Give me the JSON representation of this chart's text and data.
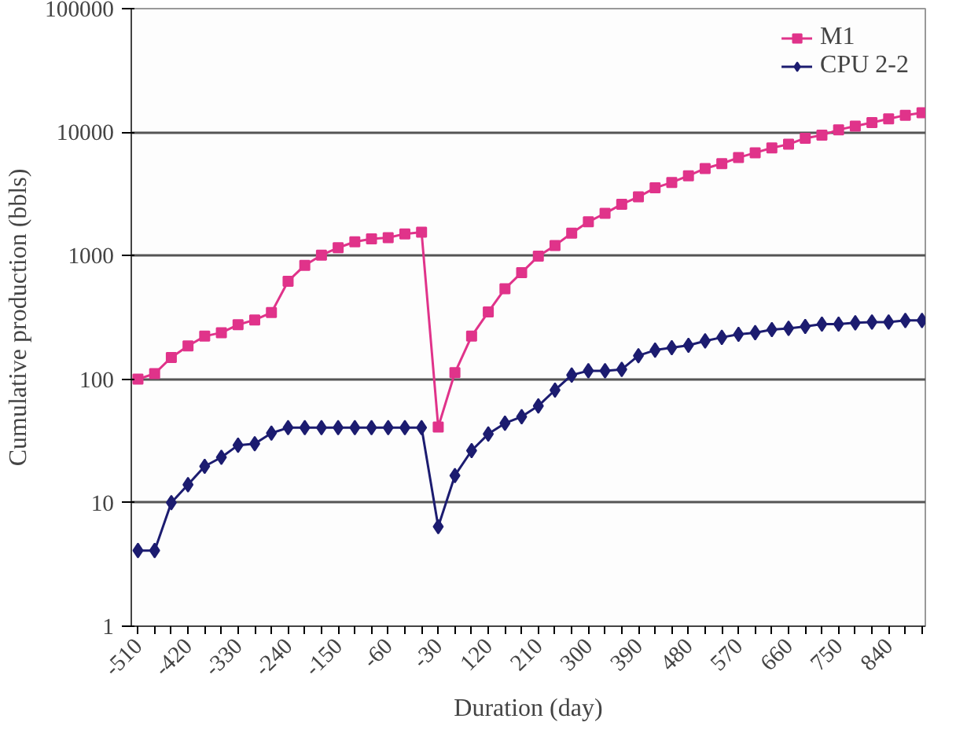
{
  "chart_data": {
    "type": "line",
    "xlabel": "Duration (day)",
    "ylabel": "Cumulative production (bbls)",
    "categories": [
      "-510",
      null,
      null,
      "-420",
      null,
      null,
      "-330",
      null,
      null,
      "-240",
      null,
      null,
      "-150",
      null,
      null,
      "-60",
      null,
      null,
      "-30",
      null,
      null,
      "120",
      null,
      null,
      "210",
      null,
      null,
      "300",
      null,
      null,
      "390",
      null,
      null,
      "480",
      null,
      null,
      "570",
      null,
      null,
      "660",
      null,
      null,
      "750",
      null,
      null,
      "840",
      null,
      null
    ],
    "series": [
      {
        "name": "M1",
        "color": "#e0338a",
        "marker": "square",
        "values": [
          100,
          111,
          150,
          186,
          223,
          238,
          276,
          302,
          346,
          621,
          835,
          1010,
          1160,
          1295,
          1370,
          1400,
          1500,
          1550,
          41,
          113,
          223,
          350,
          540,
          730,
          990,
          1210,
          1520,
          1880,
          2200,
          2610,
          2990,
          3540,
          3920,
          4440,
          5080,
          5560,
          6220,
          6810,
          7460,
          7980,
          8930,
          9450,
          10460,
          11200,
          11970,
          12820,
          13710,
          14350
        ]
      },
      {
        "name": "CPU 2-2",
        "color": "#1c1c70",
        "marker": "diamond",
        "values": [
          4.1,
          4.1,
          10,
          14,
          19.7,
          23.3,
          29.2,
          30,
          36.6,
          40.5,
          40.5,
          40.5,
          40.5,
          40.5,
          40.5,
          40.5,
          40.5,
          40.5,
          6.4,
          16.6,
          26.4,
          36,
          44,
          49.7,
          60.8,
          81.6,
          108,
          117,
          117,
          120,
          155,
          172,
          180,
          188,
          204,
          218,
          231,
          238,
          252,
          258,
          267,
          279,
          279,
          286,
          290,
          290,
          299,
          299
        ]
      }
    ],
    "log": "y",
    "ylim": [
      1,
      100000
    ],
    "yticks": [
      1,
      10,
      100,
      1000,
      10000,
      100000
    ],
    "grid": "y",
    "legend": "top right",
    "line_style": "solid"
  }
}
